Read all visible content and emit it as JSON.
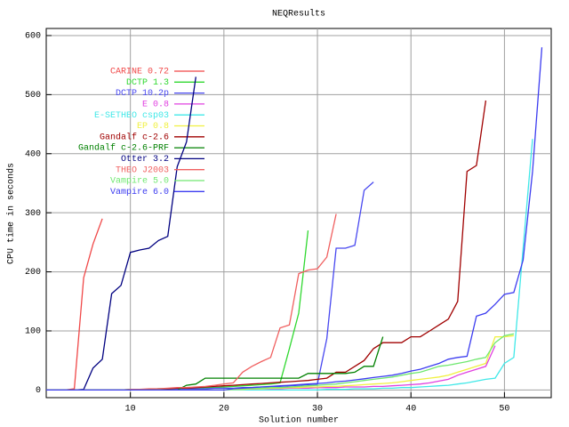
{
  "chart_data": {
    "type": "line",
    "title": "NEQResults",
    "x_label": "Solution number",
    "y_label": "CPU time in seconds",
    "x": [
      1,
      2,
      3,
      4,
      5,
      6,
      7,
      8,
      9,
      10,
      11,
      12,
      13,
      14,
      15,
      16,
      17,
      18,
      19,
      20,
      21,
      22,
      23,
      24,
      25,
      26,
      27,
      28,
      29,
      30,
      31,
      32,
      33,
      34,
      35,
      36,
      37,
      38,
      39,
      40,
      41,
      42,
      43,
      44,
      45,
      46,
      47,
      48,
      49,
      50,
      51,
      52,
      53,
      54
    ],
    "xlim": [
      1,
      55
    ],
    "ylim": [
      -13,
      612
    ],
    "xticks": [
      10,
      20,
      30,
      40,
      50
    ],
    "yticks": [
      0,
      100,
      200,
      300,
      400,
      500,
      600
    ],
    "grid": true,
    "legend": "upper left",
    "series": [
      {
        "name": "CARINE 0.72",
        "color": "#f04848",
        "values": [
          0,
          0,
          0,
          2,
          190,
          247,
          290,
          null,
          null,
          null,
          null,
          null,
          null,
          null,
          null,
          null,
          null,
          null,
          null,
          null,
          null,
          null,
          null,
          null,
          null,
          null,
          null,
          null,
          null,
          null,
          null,
          null,
          null,
          null,
          null,
          null,
          null,
          null,
          null,
          null,
          null,
          null,
          null,
          null,
          null,
          null,
          null,
          null,
          null,
          null,
          null,
          null,
          null,
          null
        ]
      },
      {
        "name": "DCTP 1.3",
        "color": "#30d830",
        "values": [
          0,
          0,
          0,
          0,
          0,
          0,
          0,
          0,
          0,
          1,
          1,
          1,
          2,
          2,
          2,
          3,
          3,
          4,
          4,
          5,
          6,
          7,
          8,
          9,
          10,
          12,
          70,
          130,
          270,
          null,
          null,
          null,
          null,
          null,
          null,
          null,
          null,
          null,
          null,
          null,
          null,
          null,
          null,
          null,
          null,
          null,
          null,
          null,
          null,
          null,
          null,
          null,
          null,
          null
        ]
      },
      {
        "name": "DCTP 10.2p",
        "color": "#4848f0",
        "values": [
          0,
          0,
          0,
          0,
          0,
          0,
          0,
          0,
          0,
          0,
          1,
          1,
          1,
          1,
          1,
          2,
          2,
          2,
          3,
          3,
          3,
          4,
          4,
          5,
          5,
          6,
          7,
          8,
          9,
          10,
          87,
          240,
          240,
          245,
          338,
          352,
          null,
          null,
          null,
          null,
          null,
          null,
          null,
          null,
          null,
          null,
          null,
          null,
          null,
          null,
          null,
          null,
          null,
          null
        ]
      },
      {
        "name": "E 0.8",
        "color": "#e040e0",
        "values": [
          0,
          0,
          0,
          0,
          0,
          0,
          0,
          0,
          0,
          0,
          0,
          0,
          0,
          0,
          0,
          0,
          0,
          0,
          0,
          0,
          1,
          1,
          1,
          2,
          2,
          2,
          3,
          3,
          3,
          4,
          4,
          4,
          5,
          5,
          5,
          6,
          6,
          7,
          8,
          9,
          10,
          12,
          15,
          18,
          25,
          30,
          35,
          40,
          75,
          null,
          null,
          null,
          null,
          null
        ]
      },
      {
        "name": "E-SETHEO csp03",
        "color": "#40e8e8",
        "values": [
          0,
          0,
          0,
          0,
          0,
          0,
          0,
          0,
          0,
          0,
          0,
          0,
          0,
          0,
          0,
          0,
          0,
          0,
          0,
          0,
          0,
          0,
          0,
          0,
          0,
          0,
          0,
          0,
          0,
          0,
          1,
          1,
          1,
          2,
          2,
          2,
          3,
          3,
          4,
          4,
          5,
          6,
          7,
          8,
          10,
          12,
          15,
          18,
          20,
          45,
          55,
          240,
          425,
          null
        ]
      },
      {
        "name": "EP 0.8",
        "color": "#f0f040",
        "values": [
          0,
          0,
          0,
          0,
          0,
          0,
          0,
          0,
          0,
          0,
          0,
          0,
          0,
          0,
          0,
          0,
          0,
          0,
          0,
          0,
          1,
          1,
          2,
          2,
          3,
          3,
          4,
          4,
          5,
          5,
          6,
          6,
          7,
          8,
          9,
          10,
          11,
          12,
          14,
          16,
          18,
          20,
          22,
          25,
          30,
          35,
          40,
          45,
          90,
          90,
          92,
          null,
          null,
          null
        ]
      },
      {
        "name": "Gandalf c-2.6",
        "color": "#a00000",
        "values": [
          0,
          0,
          0,
          0,
          0,
          0,
          0,
          0,
          0,
          0,
          1,
          1,
          2,
          2,
          3,
          3,
          4,
          5,
          6,
          7,
          8,
          9,
          10,
          11,
          12,
          13,
          14,
          15,
          16,
          18,
          20,
          30,
          30,
          40,
          50,
          70,
          80,
          80,
          80,
          90,
          90,
          100,
          110,
          120,
          150,
          370,
          380,
          490,
          null,
          null,
          null,
          null,
          null,
          null
        ]
      },
      {
        "name": "Gandalf c-2.6-PRF",
        "color": "#008000",
        "values": [
          0,
          0,
          0,
          0,
          0,
          0,
          0,
          0,
          0,
          0,
          0,
          0,
          0,
          0,
          0,
          8,
          10,
          20,
          20,
          20,
          20,
          20,
          20,
          20,
          20,
          20,
          20,
          20,
          28,
          28,
          28,
          28,
          28,
          30,
          40,
          40,
          90,
          null,
          null,
          null,
          null,
          null,
          null,
          null,
          null,
          null,
          null,
          null,
          null,
          null,
          null,
          null,
          null,
          null
        ]
      },
      {
        "name": "Otter 3.2",
        "color": "#000080",
        "values": [
          0,
          0,
          0,
          0,
          1,
          37,
          52,
          163,
          177,
          233,
          237,
          240,
          253,
          260,
          378,
          420,
          530,
          null,
          null,
          null,
          null,
          null,
          null,
          null,
          null,
          null,
          null,
          null,
          null,
          null,
          null,
          null,
          null,
          null,
          null,
          null,
          null,
          null,
          null,
          null,
          null,
          null,
          null,
          null,
          null,
          null,
          null,
          null,
          null,
          null,
          null,
          null,
          null,
          null
        ]
      },
      {
        "name": "THEO J2003",
        "color": "#f06060",
        "values": [
          0,
          0,
          0,
          0,
          0,
          0,
          0,
          0,
          0,
          1,
          1,
          2,
          2,
          3,
          4,
          4,
          5,
          6,
          8,
          10,
          12,
          30,
          40,
          48,
          55,
          105,
          110,
          197,
          203,
          205,
          225,
          298,
          null,
          null,
          null,
          null,
          null,
          null,
          null,
          null,
          null,
          null,
          null,
          null,
          null,
          null,
          null,
          null,
          null,
          null,
          null,
          null,
          null,
          null
        ]
      },
      {
        "name": "Vampire 5.0",
        "color": "#70e870",
        "values": [
          0,
          0,
          0,
          0,
          0,
          0,
          0,
          0,
          0,
          0,
          0,
          0,
          0,
          0,
          0,
          0,
          0,
          0,
          0,
          0,
          2,
          2,
          3,
          3,
          4,
          4,
          5,
          6,
          7,
          8,
          9,
          10,
          12,
          14,
          16,
          18,
          20,
          22,
          25,
          28,
          30,
          35,
          40,
          42,
          45,
          48,
          52,
          55,
          80,
          92,
          95,
          null,
          null,
          null
        ]
      },
      {
        "name": "Vampire 6.0",
        "color": "#3c3cf0",
        "values": [
          0,
          0,
          0,
          0,
          0,
          0,
          0,
          0,
          0,
          0,
          0,
          0,
          0,
          0,
          0,
          0,
          0,
          0,
          0,
          0,
          2,
          3,
          4,
          5,
          6,
          7,
          8,
          9,
          10,
          11,
          12,
          14,
          15,
          17,
          19,
          21,
          23,
          25,
          28,
          32,
          35,
          40,
          45,
          52,
          55,
          57,
          125,
          130,
          145,
          162,
          165,
          220,
          370,
          580
        ]
      }
    ]
  }
}
